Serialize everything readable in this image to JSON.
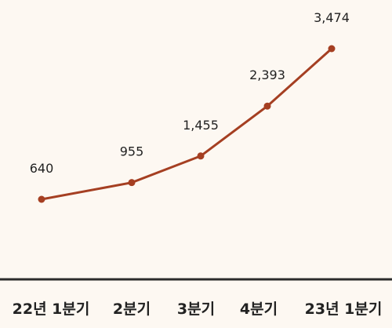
{
  "chart_data": {
    "type": "line",
    "categories": [
      "22년 1분기",
      "2분기",
      "3분기",
      "4분기",
      "23년 1분기"
    ],
    "series": [
      {
        "color": "#a53f22",
        "values": [
          640,
          955,
          1455,
          2393,
          3474
        ],
        "value_labels": [
          "640",
          "955",
          "1,455",
          "2,393",
          "3,474"
        ]
      }
    ]
  }
}
